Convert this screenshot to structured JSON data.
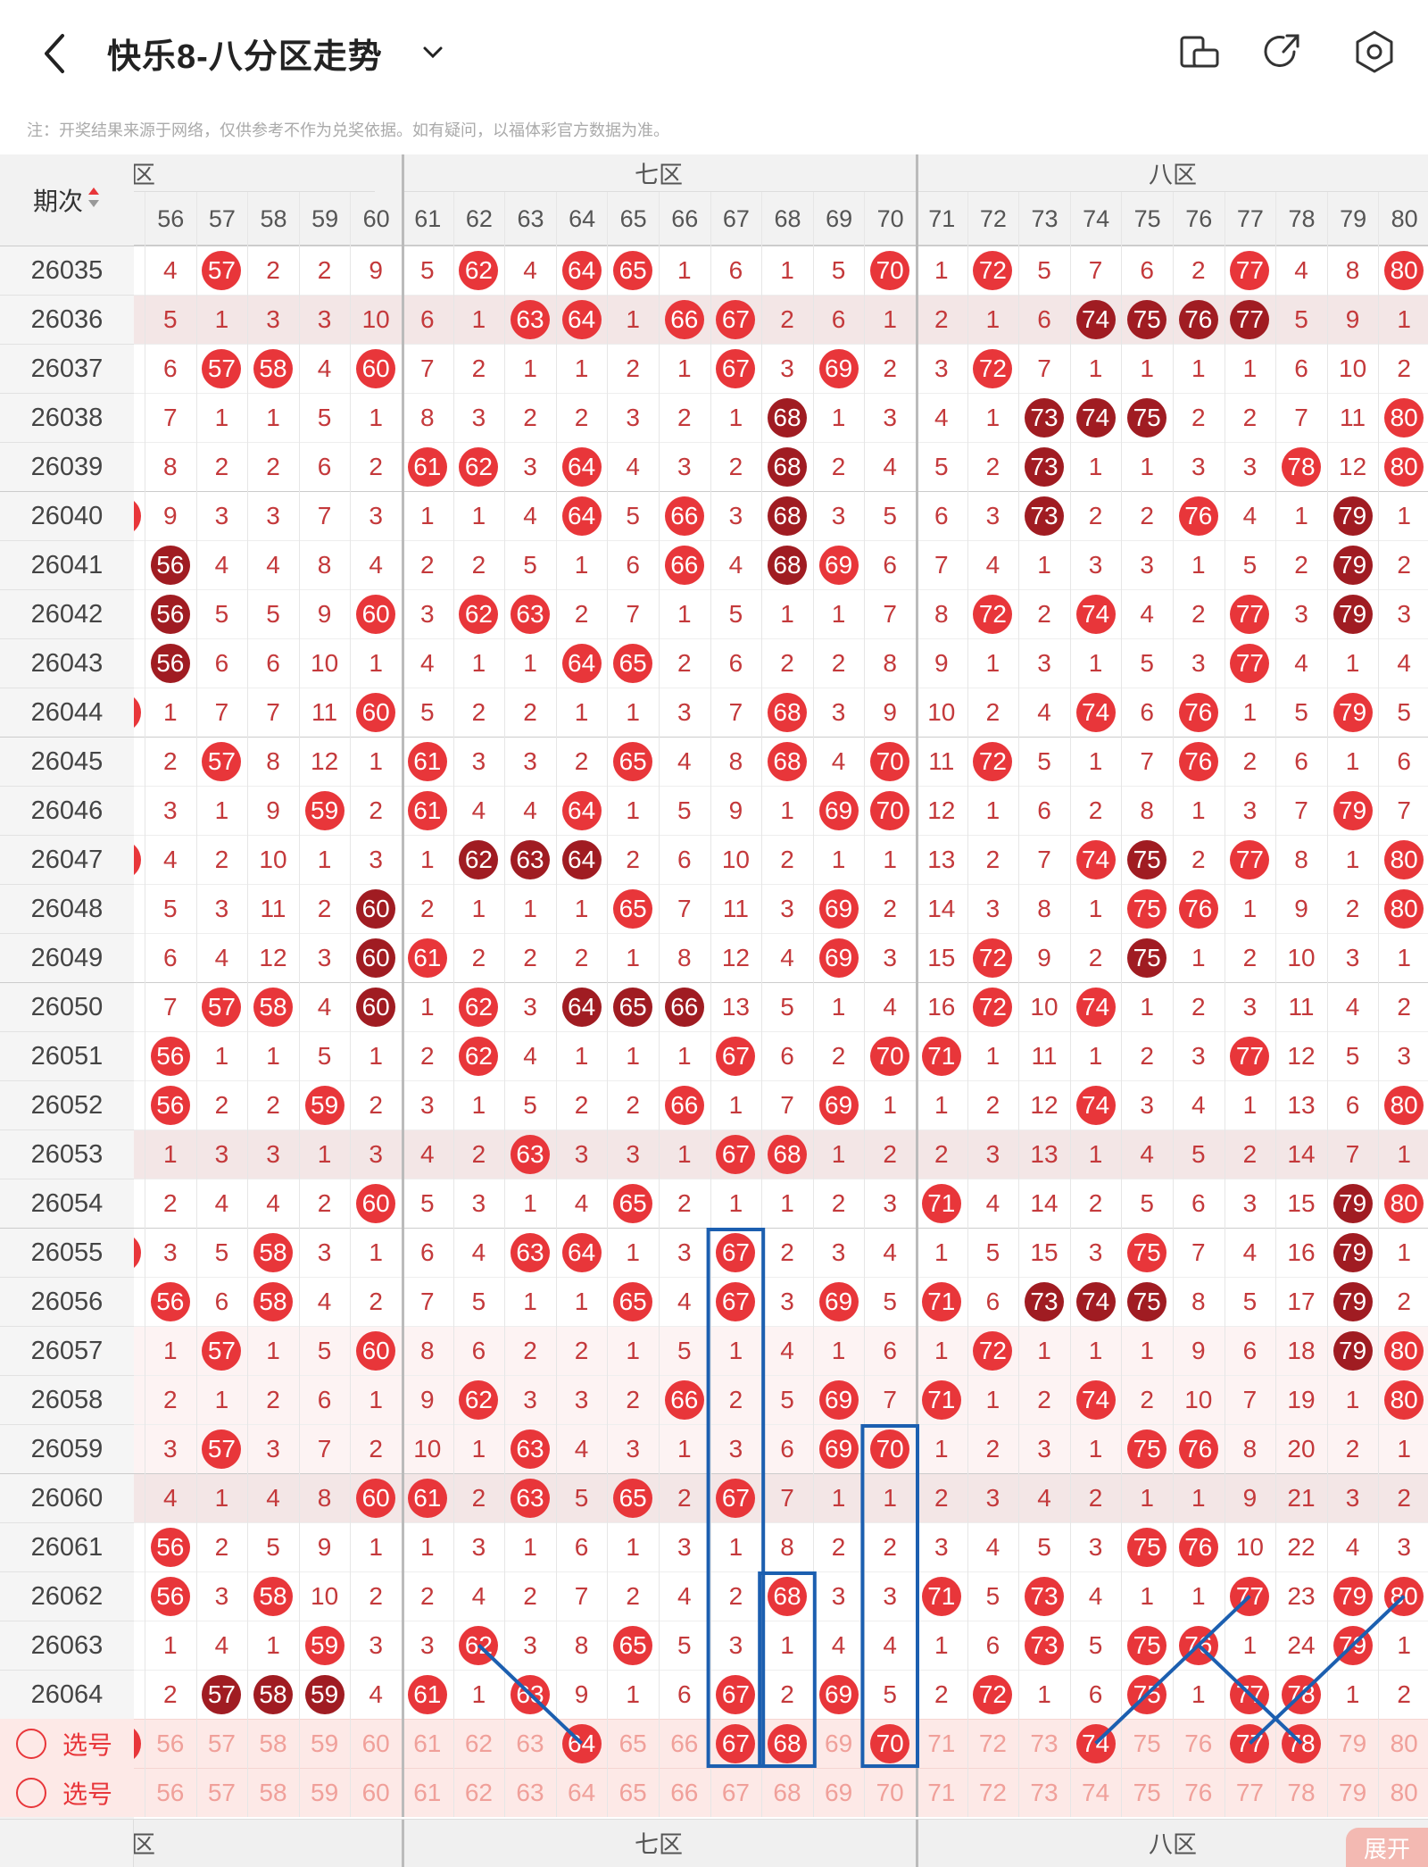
{
  "header": {
    "title": "快乐8-八分区走势",
    "back_icon": "chevron-left-icon",
    "dropdown_icon": "chevron-down-icon",
    "icons": [
      "rotate-screen-icon",
      "share-icon",
      "settings-icon"
    ]
  },
  "notice": "注：开奖结果来源于网络，仅供参考不作为兑奖依据。如有疑问，以福体彩官方数据为准。",
  "table": {
    "period_header": "期次",
    "zones": [
      {
        "label": "六区",
        "shown": "六区",
        "cols": [
          56,
          57,
          58,
          59,
          60
        ]
      },
      {
        "label": "七区",
        "cols": [
          61,
          62,
          63,
          64,
          65,
          66,
          67,
          68,
          69,
          70
        ]
      },
      {
        "label": "八区",
        "cols": [
          71,
          72,
          73,
          74,
          75,
          76,
          77,
          78,
          79,
          80
        ]
      }
    ],
    "zone_labels": {
      "six": "六区",
      "seven": "七区",
      "eight": "八区"
    },
    "columns": [
      "56",
      "57",
      "58",
      "59",
      "60",
      "61",
      "62",
      "63",
      "64",
      "65",
      "66",
      "67",
      "68",
      "69",
      "70",
      "71",
      "72",
      "73",
      "74",
      "75",
      "76",
      "77",
      "78",
      "79",
      "80"
    ],
    "rows": [
      {
        "period": "26035",
        "v": [
          "4",
          57,
          "2",
          "2",
          "9",
          "5",
          62,
          "4",
          64,
          65,
          "1",
          "6",
          "1",
          "5",
          70,
          "1",
          72,
          "5",
          "7",
          "6",
          "2",
          77,
          "4",
          "8",
          80
        ]
      },
      {
        "period": "26036",
        "v": [
          "5",
          "1",
          "3",
          "3",
          "10",
          "6",
          "1",
          63,
          64,
          "1",
          66,
          67,
          "2",
          "6",
          "1",
          "2",
          "1",
          "6",
          74,
          75,
          76,
          77,
          "5",
          "9",
          "1"
        ],
        "dark": [
          74,
          75,
          76,
          77
        ]
      },
      {
        "period": "26037",
        "v": [
          "6",
          57,
          58,
          "4",
          60,
          "7",
          "2",
          "1",
          "1",
          "2",
          "1",
          67,
          "3",
          69,
          "2",
          "3",
          72,
          "7",
          "1",
          "1",
          "1",
          "1",
          "6",
          "10",
          "2"
        ]
      },
      {
        "period": "26038",
        "v": [
          "7",
          "1",
          "1",
          "5",
          "1",
          "8",
          "3",
          "2",
          "2",
          "3",
          "2",
          "1",
          68,
          "1",
          "3",
          "4",
          "1",
          73,
          74,
          75,
          "2",
          "2",
          "7",
          "11",
          80
        ],
        "dark": [
          68,
          73,
          74,
          75
        ]
      },
      {
        "period": "26039",
        "v": [
          "8",
          "2",
          "2",
          "6",
          "2",
          61,
          62,
          "3",
          64,
          "4",
          "3",
          "2",
          68,
          "2",
          "4",
          "5",
          "2",
          73,
          "1",
          "1",
          "3",
          "3",
          78,
          "12",
          80
        ],
        "dark": [
          68,
          73
        ]
      },
      {
        "period": "26040",
        "v": [
          "9",
          "3",
          "3",
          "7",
          "3",
          "1",
          "1",
          "4",
          64,
          "5",
          66,
          "3",
          68,
          "3",
          "5",
          "6",
          "3",
          73,
          "2",
          "2",
          76,
          "4",
          "1",
          79,
          "1"
        ],
        "dark": [
          68,
          73,
          79
        ]
      },
      {
        "period": "26041",
        "v": [
          56,
          "4",
          "4",
          "8",
          "4",
          "2",
          "2",
          "5",
          "1",
          "6",
          66,
          "4",
          68,
          69,
          "6",
          "7",
          "4",
          "1",
          "3",
          "3",
          "1",
          "5",
          "2",
          79,
          "2"
        ],
        "dark": [
          56,
          68,
          79
        ]
      },
      {
        "period": "26042",
        "v": [
          56,
          "5",
          "5",
          "9",
          60,
          "3",
          62,
          63,
          "2",
          "7",
          "1",
          "5",
          "1",
          "1",
          "7",
          "8",
          72,
          "2",
          74,
          "4",
          "2",
          77,
          "3",
          79,
          "3"
        ],
        "dark": [
          56,
          79
        ]
      },
      {
        "period": "26043",
        "v": [
          56,
          "6",
          "6",
          "10",
          "1",
          "4",
          "1",
          "1",
          64,
          65,
          "2",
          "6",
          "2",
          "2",
          "8",
          "9",
          "1",
          "3",
          "1",
          "5",
          "3",
          77,
          "4",
          "1",
          "4"
        ],
        "dark": [
          56
        ]
      },
      {
        "period": "26044",
        "v": [
          "1",
          "7",
          "7",
          "11",
          60,
          "5",
          "2",
          "2",
          "1",
          "1",
          "3",
          "7",
          68,
          "3",
          "9",
          "10",
          "2",
          "4",
          74,
          "6",
          76,
          "1",
          "5",
          79,
          "5"
        ]
      },
      {
        "period": "26045",
        "v": [
          "2",
          57,
          "8",
          "12",
          "1",
          61,
          "3",
          "3",
          "2",
          65,
          "4",
          "8",
          68,
          "4",
          70,
          "11",
          72,
          "5",
          "1",
          "7",
          76,
          "2",
          "6",
          "1",
          "6"
        ]
      },
      {
        "period": "26046",
        "v": [
          "3",
          "1",
          "9",
          59,
          "2",
          61,
          "4",
          "4",
          64,
          "1",
          "5",
          "9",
          "1",
          69,
          70,
          "12",
          "1",
          "6",
          "2",
          "8",
          "1",
          "3",
          "7",
          79,
          "7"
        ]
      },
      {
        "period": "26047",
        "v": [
          "4",
          "2",
          "10",
          "1",
          "3",
          "1",
          62,
          63,
          64,
          "2",
          "6",
          "10",
          "2",
          "1",
          "1",
          "13",
          "2",
          "7",
          74,
          75,
          "2",
          77,
          "8",
          "1",
          80
        ],
        "dark": [
          62,
          63,
          64,
          75
        ]
      },
      {
        "period": "26048",
        "v": [
          "5",
          "3",
          "11",
          "2",
          60,
          "2",
          "1",
          "1",
          "1",
          65,
          "7",
          "11",
          "3",
          69,
          "2",
          "14",
          "3",
          "8",
          "1",
          75,
          76,
          "1",
          "9",
          "2",
          80
        ],
        "dark": [
          60
        ]
      },
      {
        "period": "26049",
        "v": [
          "6",
          "4",
          "12",
          "3",
          60,
          61,
          "2",
          "2",
          "2",
          "1",
          "8",
          "12",
          "4",
          69,
          "3",
          "15",
          72,
          "9",
          "2",
          75,
          "1",
          "2",
          "10",
          "3",
          "1"
        ],
        "dark": [
          60,
          75
        ]
      },
      {
        "period": "26050",
        "v": [
          "7",
          57,
          58,
          "4",
          60,
          "1",
          62,
          "3",
          64,
          65,
          66,
          "13",
          "5",
          "1",
          "4",
          "16",
          72,
          "10",
          74,
          "1",
          "2",
          "3",
          "11",
          "4",
          "2"
        ],
        "dark": [
          60,
          64,
          65,
          66
        ]
      },
      {
        "period": "26051",
        "v": [
          56,
          "1",
          "1",
          "5",
          "1",
          "2",
          62,
          "4",
          "1",
          "1",
          "1",
          67,
          "6",
          "2",
          70,
          71,
          "1",
          "11",
          "1",
          "2",
          "3",
          77,
          "12",
          "5",
          "3"
        ]
      },
      {
        "period": "26052",
        "v": [
          56,
          "2",
          "2",
          59,
          "2",
          "3",
          "1",
          "5",
          "2",
          "2",
          66,
          "1",
          "7",
          69,
          "1",
          "1",
          "2",
          "12",
          74,
          "3",
          "4",
          "1",
          "13",
          "6",
          80
        ]
      },
      {
        "period": "26053",
        "v": [
          "1",
          "3",
          "3",
          "1",
          "3",
          "4",
          "2",
          63,
          "3",
          "3",
          "1",
          67,
          68,
          "1",
          "2",
          "2",
          "3",
          "13",
          "1",
          "4",
          "5",
          "2",
          "14",
          "7",
          "1"
        ]
      },
      {
        "period": "26054",
        "v": [
          "2",
          "4",
          "4",
          "2",
          60,
          "5",
          "3",
          "1",
          "4",
          65,
          "2",
          "1",
          "1",
          "2",
          "3",
          71,
          "4",
          "14",
          "2",
          "5",
          "6",
          "3",
          "15",
          79,
          80
        ],
        "dark": [
          79
        ]
      },
      {
        "period": "26055",
        "v": [
          "3",
          "5",
          58,
          "3",
          "1",
          "6",
          "4",
          63,
          64,
          "1",
          "3",
          67,
          "2",
          "3",
          "4",
          "1",
          "5",
          "15",
          "3",
          75,
          "7",
          "4",
          "16",
          79,
          "1"
        ],
        "dark": [
          79
        ]
      },
      {
        "period": "26056",
        "v": [
          56,
          "6",
          58,
          "4",
          "2",
          "7",
          "5",
          "1",
          "1",
          65,
          "4",
          67,
          "3",
          69,
          "5",
          71,
          "6",
          73,
          74,
          75,
          "8",
          "5",
          "17",
          79,
          "2"
        ],
        "dark": [
          73,
          74,
          75,
          79
        ]
      },
      {
        "period": "26057",
        "v": [
          "1",
          57,
          "1",
          "5",
          60,
          "8",
          "6",
          "2",
          "2",
          "1",
          "5",
          "1",
          "4",
          "1",
          "6",
          "1",
          72,
          "1",
          "1",
          "1",
          "9",
          "6",
          "18",
          79,
          80
        ],
        "dark": [
          79
        ]
      },
      {
        "period": "26058",
        "v": [
          "2",
          "1",
          "2",
          "6",
          "1",
          "9",
          62,
          "3",
          "3",
          "2",
          66,
          "2",
          "5",
          69,
          "7",
          71,
          "1",
          "2",
          74,
          "2",
          "10",
          "7",
          "19",
          "1",
          80
        ]
      },
      {
        "period": "26059",
        "v": [
          "3",
          57,
          "3",
          "7",
          "2",
          "10",
          "1",
          63,
          "4",
          "3",
          "1",
          "3",
          "6",
          69,
          70,
          "1",
          "2",
          "3",
          "1",
          75,
          76,
          "8",
          "20",
          "2",
          "1"
        ]
      },
      {
        "period": "26060",
        "v": [
          "4",
          "1",
          "4",
          "8",
          60,
          61,
          "2",
          63,
          "5",
          65,
          "2",
          67,
          "7",
          "1",
          "1",
          "2",
          "3",
          "4",
          "2",
          "1",
          "1",
          "9",
          "21",
          "3",
          "2"
        ]
      },
      {
        "period": "26061",
        "v": [
          56,
          "2",
          "5",
          "9",
          "1",
          "1",
          "3",
          "1",
          "6",
          "1",
          "3",
          "1",
          "8",
          "2",
          "2",
          "3",
          "4",
          "5",
          "3",
          75,
          76,
          "10",
          "22",
          "4",
          "3"
        ]
      },
      {
        "period": "26062",
        "v": [
          56,
          "3",
          58,
          "10",
          "2",
          "2",
          "4",
          "2",
          "7",
          "2",
          "4",
          "2",
          68,
          "3",
          "3",
          71,
          "5",
          73,
          "4",
          "1",
          "1",
          77,
          "23",
          79,
          80
        ]
      },
      {
        "period": "26063",
        "v": [
          "1",
          "4",
          "1",
          59,
          "3",
          "3",
          62,
          "3",
          "8",
          65,
          "5",
          "3",
          "1",
          "4",
          "4",
          "1",
          "6",
          73,
          "5",
          75,
          76,
          "1",
          "24",
          79,
          "1"
        ]
      },
      {
        "period": "26064",
        "v": [
          "2",
          57,
          58,
          59,
          "4",
          61,
          "1",
          63,
          "9",
          "1",
          "6",
          67,
          "2",
          69,
          "5",
          "2",
          72,
          "1",
          "6",
          75,
          "1",
          77,
          78,
          "1",
          "2"
        ],
        "dark": [
          57,
          58,
          59
        ]
      }
    ],
    "select_label": "选号",
    "select_row1_marked": [
      64,
      67,
      68,
      70,
      74,
      77,
      78
    ],
    "footer_expand": "展开",
    "colors": {
      "red": "#e8363a",
      "dark": "#a01c22",
      "text": "#c4393b",
      "header_bg": "#f2f2f2",
      "blue": "#1c5fb0",
      "stripe": "#f3e9e9"
    }
  }
}
